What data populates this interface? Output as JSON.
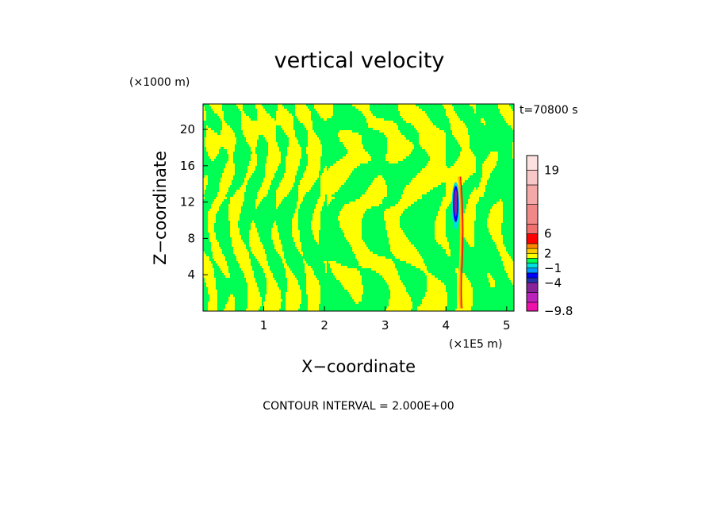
{
  "chart_data": {
    "type": "heatmap",
    "title": "vertical velocity",
    "xlabel": "X−coordinate",
    "ylabel": "Z−coordinate",
    "x_unit": "(×1E5 m)",
    "y_unit": "(×1000 m)",
    "time_label": "t=70800 s",
    "contour_interval_label": "CONTOUR INTERVAL = 2.000E+00",
    "xlim": [
      0,
      5.12
    ],
    "ylim": [
      0,
      22.8
    ],
    "x_ticks": [
      1,
      2,
      3,
      4,
      5
    ],
    "y_ticks": [
      4,
      8,
      12,
      16,
      20
    ],
    "colorbar": {
      "levels_min_to_max": [
        -9.8,
        -8,
        -6,
        -4,
        -3,
        -2,
        -1,
        0,
        1,
        2,
        3,
        4,
        6,
        8,
        12,
        16,
        19,
        22
      ],
      "colors_min_to_max": [
        "#ee11aa",
        "#bb22bb",
        "#882299",
        "#2233aa",
        "#0000ff",
        "#0099ff",
        "#00dddd",
        "#00ff55",
        "#ffff00",
        "#ffcc00",
        "#ff8800",
        "#ff0000",
        "#f07070",
        "#f08888",
        "#f5a8a8",
        "#f8c8c8",
        "#fde0e0"
      ],
      "labels": [
        {
          "value": 19,
          "text": "19"
        },
        {
          "value": 6,
          "text": "6"
        },
        {
          "value": 2,
          "text": "2"
        },
        {
          "value": -1,
          "text": "−1"
        },
        {
          "value": -4,
          "text": "−4"
        },
        {
          "value": -9.8,
          "text": "−9.8"
        }
      ]
    },
    "field_description_colors": {
      "background_positive": "#ffff00",
      "background_negative": "#00ff55",
      "jet_core": "#ff0000"
    },
    "grid": false,
    "legend_placement": "right"
  }
}
